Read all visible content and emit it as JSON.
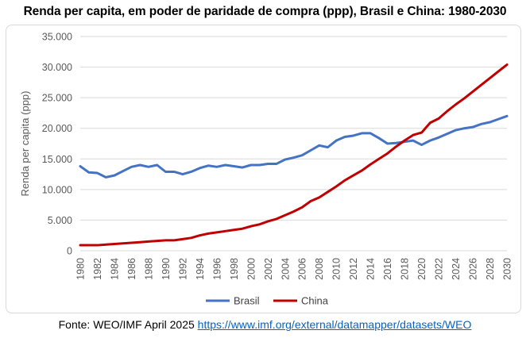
{
  "chart_data": {
    "type": "line",
    "title": "Renda per capita, em poder de paridade de compra (ppp), Brasil e China: 1980-2030",
    "xlabel": "",
    "ylabel": "Renda per capita (ppp)",
    "ylim": [
      0,
      35000
    ],
    "ytick_values": [
      0,
      5000,
      10000,
      15000,
      20000,
      25000,
      30000,
      35000
    ],
    "ytick_labels": [
      "0",
      "5.000",
      "10.000",
      "15.000",
      "20.000",
      "25.000",
      "30.000",
      "35.000"
    ],
    "x": [
      1980,
      1981,
      1982,
      1983,
      1984,
      1985,
      1986,
      1987,
      1988,
      1989,
      1990,
      1991,
      1992,
      1993,
      1994,
      1995,
      1996,
      1997,
      1998,
      1999,
      2000,
      2001,
      2002,
      2003,
      2004,
      2005,
      2006,
      2007,
      2008,
      2009,
      2010,
      2011,
      2012,
      2013,
      2014,
      2015,
      2016,
      2017,
      2018,
      2019,
      2020,
      2021,
      2022,
      2023,
      2024,
      2025,
      2026,
      2027,
      2028,
      2029,
      2030
    ],
    "xtick_labels": [
      "1980",
      "1982",
      "1984",
      "1986",
      "1988",
      "1990",
      "1992",
      "1994",
      "1996",
      "1998",
      "2000",
      "2002",
      "2004",
      "2006",
      "2008",
      "2010",
      "2012",
      "2014",
      "2016",
      "2018",
      "2020",
      "2022",
      "2024",
      "2026",
      "2028",
      "2030"
    ],
    "grid": true,
    "legend": "bottom-center",
    "series": [
      {
        "name": "Brasil",
        "color": "#4472c4",
        "values": [
          13800,
          12800,
          12700,
          12000,
          12300,
          13000,
          13700,
          14000,
          13700,
          14000,
          12900,
          12900,
          12500,
          12900,
          13500,
          13900,
          13700,
          14000,
          13800,
          13600,
          14000,
          14000,
          14200,
          14200,
          14900,
          15200,
          15600,
          16400,
          17200,
          16900,
          18000,
          18600,
          18800,
          19200,
          19200,
          18400,
          17500,
          17600,
          17800,
          18000,
          17300,
          18000,
          18500,
          19100,
          19700,
          20000,
          20200,
          20700,
          21000,
          21500,
          22000
        ]
      },
      {
        "name": "China",
        "color": "#c00000",
        "values": [
          900,
          900,
          900,
          1000,
          1100,
          1200,
          1300,
          1400,
          1500,
          1600,
          1700,
          1700,
          1900,
          2100,
          2500,
          2800,
          3000,
          3200,
          3400,
          3600,
          4000,
          4300,
          4800,
          5200,
          5800,
          6400,
          7100,
          8100,
          8700,
          9600,
          10500,
          11500,
          12300,
          13100,
          14100,
          15000,
          15900,
          17000,
          18000,
          18900,
          19300,
          20900,
          21600,
          22800,
          23900,
          24900,
          26000,
          27100,
          28200,
          29300,
          30400
        ]
      }
    ]
  },
  "source": {
    "prefix": "Fonte: WEO/IMF April 2025 ",
    "link_text": "https://www.imf.org/external/datamapper/datasets/WEO"
  }
}
